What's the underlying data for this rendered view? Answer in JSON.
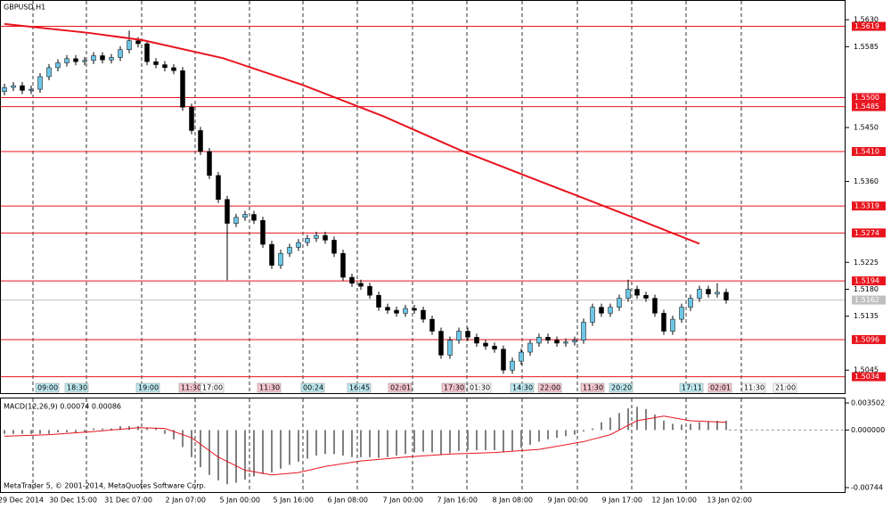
{
  "chart_data": [
    {
      "type": "candlestick",
      "title": "GBPUSD,H1",
      "xlim": [
        -0.5,
        94.3
      ],
      "ylim": [
        1.502,
        1.566
      ],
      "yticks": [
        {
          "value": 1.563,
          "label": "1.5630"
        },
        1.5585,
        {
          "value": 1.545,
          "label": "1.5450"
        },
        {
          "value": 1.536,
          "label": "1.5360"
        },
        1.5225,
        {
          "value": 1.518,
          "label": "1.5180"
        },
        1.5135,
        1.5045
      ],
      "xticks": [
        {
          "value": 3.2,
          "label": "29 Dec 2014"
        },
        {
          "value": 9.2,
          "label": "30 Dec 15:00"
        },
        {
          "value": 15.4,
          "label": "31 Dec 07:00"
        },
        {
          "value": 21.4,
          "label": "2 Jan 07:00"
        },
        {
          "value": 27.5,
          "label": "5 Jan 00:00"
        },
        {
          "value": 33.5,
          "label": "5 Jan 16:00"
        },
        {
          "value": 39.6,
          "label": "6 Jan 08:00"
        },
        {
          "value": 45.8,
          "label": "7 Jan 00:00"
        },
        {
          "value": 51.9,
          "label": "7 Jan 16:00"
        },
        {
          "value": 58.1,
          "label": "8 Jan 08:00"
        },
        {
          "value": 64.3,
          "label": "9 Jan 00:00"
        },
        {
          "value": 70.4,
          "label": "9 Jan 17:00"
        },
        {
          "value": 76.5,
          "label": "12 Jan 10:00"
        },
        {
          "value": 82.7,
          "label": "13 Jan 02:00"
        }
      ],
      "up_color": "#6ec6e6",
      "down_color": "#000000",
      "candles": [
        [
          1.551,
          1.5523,
          1.5504,
          1.5517
        ],
        [
          1.5517,
          1.5526,
          1.5511,
          1.552
        ],
        [
          1.552,
          1.5526,
          1.5506,
          1.5512
        ],
        [
          1.5512,
          1.552,
          1.5506,
          1.5514
        ],
        [
          1.5514,
          1.5541,
          1.5508,
          1.5535
        ],
        [
          1.5535,
          1.5556,
          1.5529,
          1.555
        ],
        [
          1.555,
          1.5564,
          1.5544,
          1.5558
        ],
        [
          1.5558,
          1.5571,
          1.5552,
          1.5565
        ],
        [
          1.5565,
          1.5571,
          1.5554,
          1.556
        ],
        [
          1.556,
          1.5568,
          1.5554,
          1.5562
        ],
        [
          1.5562,
          1.5576,
          1.5556,
          1.557
        ],
        [
          1.557,
          1.5576,
          1.5557,
          1.5563
        ],
        [
          1.5563,
          1.5573,
          1.5557,
          1.5567
        ],
        [
          1.5567,
          1.5586,
          1.5561,
          1.558
        ],
        [
          1.558,
          1.5612,
          1.5574,
          1.5595
        ],
        [
          1.5595,
          1.5601,
          1.5584,
          1.559
        ],
        [
          1.559,
          1.5596,
          1.5554,
          1.556
        ],
        [
          1.556,
          1.5566,
          1.5549,
          1.5555
        ],
        [
          1.5555,
          1.5561,
          1.5544,
          1.555
        ],
        [
          1.555,
          1.5556,
          1.5539,
          1.5545
        ],
        [
          1.5545,
          1.5551,
          1.5478,
          1.5484
        ],
        [
          1.5484,
          1.549,
          1.5439,
          1.5445
        ],
        [
          1.5445,
          1.5451,
          1.5404,
          1.541
        ],
        [
          1.541,
          1.5416,
          1.5364,
          1.537
        ],
        [
          1.537,
          1.5376,
          1.5324,
          1.533
        ],
        [
          1.533,
          1.5336,
          1.5195,
          1.529
        ],
        [
          1.529,
          1.5306,
          1.5284,
          1.53
        ],
        [
          1.53,
          1.5311,
          1.5294,
          1.5305
        ],
        [
          1.5305,
          1.5311,
          1.5289,
          1.5295
        ],
        [
          1.5295,
          1.5301,
          1.5249,
          1.5255
        ],
        [
          1.5255,
          1.5261,
          1.5214,
          1.522
        ],
        [
          1.522,
          1.5246,
          1.5214,
          1.524
        ],
        [
          1.524,
          1.5256,
          1.5234,
          1.525
        ],
        [
          1.525,
          1.5264,
          1.5244,
          1.5258
        ],
        [
          1.5258,
          1.5271,
          1.5252,
          1.5265
        ],
        [
          1.5265,
          1.5276,
          1.5259,
          1.527
        ],
        [
          1.527,
          1.5276,
          1.5256,
          1.5262
        ],
        [
          1.5262,
          1.5268,
          1.5234,
          1.524
        ],
        [
          1.524,
          1.5246,
          1.5194,
          1.52
        ],
        [
          1.52,
          1.5206,
          1.5184,
          1.519
        ],
        [
          1.519,
          1.5196,
          1.5179,
          1.5185
        ],
        [
          1.5185,
          1.5191,
          1.5164,
          1.517
        ],
        [
          1.517,
          1.5176,
          1.5144,
          1.515
        ],
        [
          1.515,
          1.5156,
          1.5139,
          1.5145
        ],
        [
          1.5145,
          1.5151,
          1.5134,
          1.514
        ],
        [
          1.514,
          1.5154,
          1.5134,
          1.5148
        ],
        [
          1.5148,
          1.5154,
          1.5139,
          1.5145
        ],
        [
          1.5145,
          1.5151,
          1.5124,
          1.513
        ],
        [
          1.513,
          1.5136,
          1.5104,
          1.511
        ],
        [
          1.511,
          1.5116,
          1.5064,
          1.507
        ],
        [
          1.507,
          1.5101,
          1.5064,
          1.5095
        ],
        [
          1.5095,
          1.5116,
          1.5089,
          1.511
        ],
        [
          1.511,
          1.5116,
          1.5094,
          1.51
        ],
        [
          1.51,
          1.5106,
          1.5084,
          1.509
        ],
        [
          1.509,
          1.5096,
          1.5079,
          1.5085
        ],
        [
          1.5085,
          1.5091,
          1.5074,
          1.508
        ],
        [
          1.508,
          1.5086,
          1.5039,
          1.5045
        ],
        [
          1.5045,
          1.5066,
          1.5039,
          1.506
        ],
        [
          1.506,
          1.5081,
          1.5054,
          1.5075
        ],
        [
          1.5075,
          1.5096,
          1.5069,
          1.509
        ],
        [
          1.509,
          1.5106,
          1.5084,
          1.51
        ],
        [
          1.51,
          1.5106,
          1.5089,
          1.5095
        ],
        [
          1.5095,
          1.5101,
          1.5084,
          1.509
        ],
        [
          1.509,
          1.5098,
          1.5084,
          1.5092
        ],
        [
          1.5092,
          1.5101,
          1.5086,
          1.5095
        ],
        [
          1.5095,
          1.5131,
          1.5089,
          1.5125
        ],
        [
          1.5125,
          1.5156,
          1.5119,
          1.515
        ],
        [
          1.515,
          1.5156,
          1.5134,
          1.514
        ],
        [
          1.514,
          1.5156,
          1.5134,
          1.515
        ],
        [
          1.515,
          1.5171,
          1.5144,
          1.5165
        ],
        [
          1.5165,
          1.5196,
          1.5159,
          1.518
        ],
        [
          1.518,
          1.5186,
          1.5164,
          1.517
        ],
        [
          1.517,
          1.5176,
          1.5159,
          1.5165
        ],
        [
          1.5165,
          1.5171,
          1.5134,
          1.514
        ],
        [
          1.514,
          1.5146,
          1.5104,
          1.511
        ],
        [
          1.511,
          1.5136,
          1.5104,
          1.513
        ],
        [
          1.513,
          1.5156,
          1.5124,
          1.515
        ],
        [
          1.515,
          1.5171,
          1.5144,
          1.5165
        ],
        [
          1.5165,
          1.5186,
          1.5159,
          1.518
        ],
        [
          1.518,
          1.5186,
          1.5166,
          1.5172
        ],
        [
          1.5172,
          1.519,
          1.5166,
          1.5175
        ],
        [
          1.5175,
          1.5181,
          1.5156,
          1.5162
        ]
      ],
      "ma": {
        "color": "#e8141e",
        "x": [
          0,
          9.5,
          15.5,
          24.5,
          33.5,
          42.5,
          51.5,
          60.5,
          69.5,
          78
        ],
        "values": [
          1.5623,
          1.5608,
          1.5596,
          1.5566,
          1.5521,
          1.5469,
          1.541,
          1.5358,
          1.5306,
          1.5256
        ]
      },
      "level_color": "#e8141e",
      "levels": [
        1.5619,
        {
          "value": 1.55,
          "label": "1.5500"
        },
        1.5485,
        {
          "value": 1.541,
          "label": "1.5410"
        },
        1.5319,
        1.5274,
        1.5194,
        1.5096,
        1.5034
      ],
      "current": 1.5162
    },
    {
      "type": "macd",
      "title": "MACD(12,26,9) 0.00074 0.00086",
      "ylim": [
        -0.00744,
        0.003502
      ],
      "yticks": [
        0.003502,
        {
          "value": 0,
          "label": "0.000000"
        },
        -0.00744
      ],
      "hist_color": "#808080",
      "histogram": [
        -0.0005,
        -0.0005,
        -0.0005,
        -0.0005,
        -0.0005,
        -0.0005,
        -0.0003,
        -0.0003,
        -0.0003,
        -0.0003,
        0.0002,
        0.0002,
        0.0002,
        0.0005,
        0.0005,
        0.0005,
        0.0003,
        0.0003,
        -0.0005,
        -0.0012,
        -0.0022,
        -0.0035,
        -0.0048,
        -0.0058,
        -0.0065,
        -0.007,
        -0.0068,
        -0.0064,
        -0.006,
        -0.0057,
        -0.0055,
        -0.005,
        -0.0045,
        -0.0041,
        -0.0037,
        -0.0033,
        -0.0031,
        -0.0031,
        -0.0033,
        -0.0035,
        -0.0035,
        -0.0035,
        -0.0036,
        -0.0035,
        -0.0033,
        -0.0031,
        -0.0029,
        -0.0028,
        -0.0029,
        -0.0032,
        -0.003,
        -0.0027,
        -0.0026,
        -0.0026,
        -0.0026,
        -0.0026,
        -0.0029,
        -0.0027,
        -0.0023,
        -0.0019,
        -0.0015,
        -0.0012,
        -0.001,
        -0.0008,
        -0.0006,
        -0.0002,
        0.0002,
        0.001,
        0.0016,
        0.0022,
        0.0028,
        0.003,
        0.0027,
        0.002,
        0.0012,
        0.0008,
        0.0007,
        0.0008,
        0.001,
        0.0011,
        0.0012,
        0.0012
      ],
      "signal": {
        "color": "#e8141e",
        "x": [
          0,
          5,
          10,
          15,
          18,
          21,
          24,
          27,
          30,
          33,
          36,
          40,
          45,
          50,
          55,
          60,
          65,
          68,
          71,
          74,
          77,
          81
        ],
        "values": [
          -0.0008,
          -0.0006,
          -0.0002,
          0.0003,
          0.0002,
          -0.001,
          -0.0035,
          -0.0052,
          -0.0058,
          -0.0055,
          -0.0047,
          -0.004,
          -0.0035,
          -0.0031,
          -0.0029,
          -0.0025,
          -0.0015,
          -0.0006,
          0.0012,
          0.0018,
          0.0012,
          0.001
        ]
      }
    }
  ],
  "time_markers": [
    "09:00",
    "18:30",
    "19:00",
    "11:30",
    "17:00",
    "11:30",
    "00:24",
    "16:45",
    "02:01",
    "17:30",
    "01:30",
    "14:30",
    "22:00",
    "11:30",
    "20:20",
    "17:11",
    "02:01",
    "11:30",
    "21:00"
  ],
  "footer": "MetaTrader 5, © 2001-2014, MetaQuotes Software Corp."
}
